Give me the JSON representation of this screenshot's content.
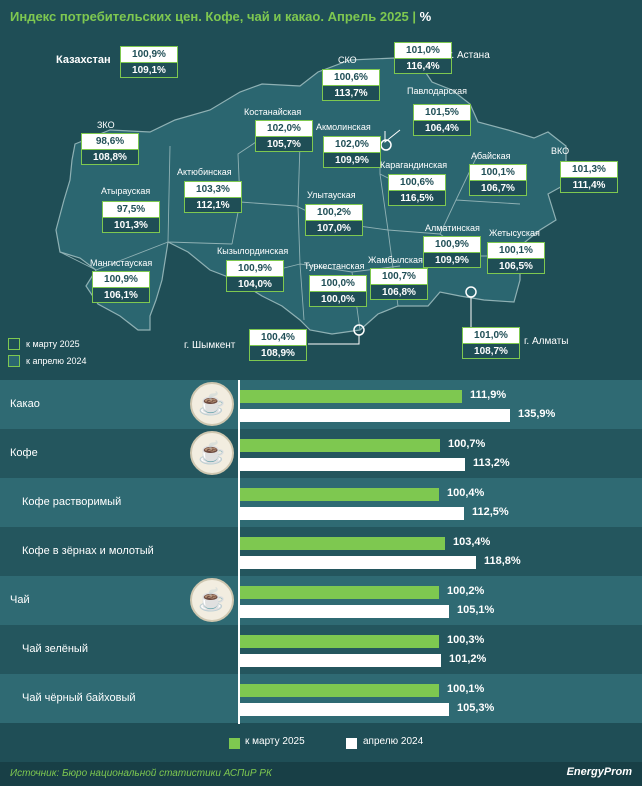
{
  "header": {
    "title": "Индекс потребительских цен. Кофе, чай и какао. Апрель 2025",
    "unit": "%"
  },
  "colors": {
    "background": "#1f4e56",
    "accent_green": "#7ec850",
    "white": "#ffffff"
  },
  "map": {
    "regions": [
      {
        "name": "Казахстан",
        "v_march": "100,9%",
        "v_april": "109,1%"
      },
      {
        "name": "СКО",
        "v_march": "100,6%",
        "v_april": "113,7%"
      },
      {
        "name": "г. Астана",
        "v_march": "101,0%",
        "v_april": "116,4%"
      },
      {
        "name": "Павлодарская",
        "v_march": "101,5%",
        "v_april": "106,4%"
      },
      {
        "name": "Костанайская",
        "v_march": "102,0%",
        "v_april": "105,7%"
      },
      {
        "name": "Акмолинская",
        "v_march": "102,0%",
        "v_april": "109,9%"
      },
      {
        "name": "ЗКО",
        "v_march": "98,6%",
        "v_april": "108,8%"
      },
      {
        "name": "Актюбинская",
        "v_march": "103,3%",
        "v_april": "112,1%"
      },
      {
        "name": "Абайская",
        "v_march": "100,1%",
        "v_april": "106,7%"
      },
      {
        "name": "ВКО",
        "v_march": "101,3%",
        "v_april": "111,4%"
      },
      {
        "name": "Карагандинская",
        "v_march": "100,6%",
        "v_april": "116,5%"
      },
      {
        "name": "Атырауская",
        "v_march": "97,5%",
        "v_april": "101,3%"
      },
      {
        "name": "Улытауская",
        "v_march": "100,2%",
        "v_april": "107,0%"
      },
      {
        "name": "Алматинская",
        "v_march": "100,9%",
        "v_april": "109,9%"
      },
      {
        "name": "Жетысуская",
        "v_march": "100,1%",
        "v_april": "106,5%"
      },
      {
        "name": "Кызылординская",
        "v_march": "100,9%",
        "v_april": "104,0%"
      },
      {
        "name": "Мангистауская",
        "v_march": "100,9%",
        "v_april": "106,1%"
      },
      {
        "name": "Туркестанская",
        "v_march": "100,0%",
        "v_april": "100,0%"
      },
      {
        "name": "Жамбылская",
        "v_march": "100,7%",
        "v_april": "106,8%"
      },
      {
        "name": "г. Шымкент",
        "v_march": "100,4%",
        "v_april": "108,9%"
      },
      {
        "name": "г. Алматы",
        "v_march": "101,0%",
        "v_april": "108,7%"
      }
    ],
    "legend": {
      "march": "к марту 2025",
      "april": "к апрелю 2024"
    }
  },
  "chart_data": {
    "type": "bar",
    "orientation": "horizontal",
    "categories": [
      "Какао",
      "Кофе",
      "Кофе растворимый",
      "Кофе в зёрнах и молотый",
      "Чай",
      "Чай зелёный",
      "Чай чёрный байховый"
    ],
    "series": [
      {
        "name": "к марту 2025",
        "values": [
          111.9,
          100.7,
          100.4,
          103.4,
          100.2,
          100.3,
          100.1
        ],
        "labels": [
          "111,9%",
          "100,7%",
          "100,4%",
          "103,4%",
          "100,2%",
          "100,3%",
          "100,1%"
        ],
        "color": "#7ec850"
      },
      {
        "name": "апрелю 2024",
        "values": [
          135.9,
          113.2,
          112.5,
          118.8,
          105.1,
          101.2,
          105.3
        ],
        "labels": [
          "135,9%",
          "113,2%",
          "112,5%",
          "118,8%",
          "105,1%",
          "101,2%",
          "105,3%"
        ],
        "color": "#ffffff"
      }
    ],
    "icons": [
      "cocoa-cup-icon",
      "coffee-cup-icon",
      null,
      null,
      "tea-cup-icon",
      null,
      null
    ]
  },
  "footer": {
    "source": "Источник: Бюро национальной статистики АСПиР РК",
    "logo": "EnergyProm"
  }
}
